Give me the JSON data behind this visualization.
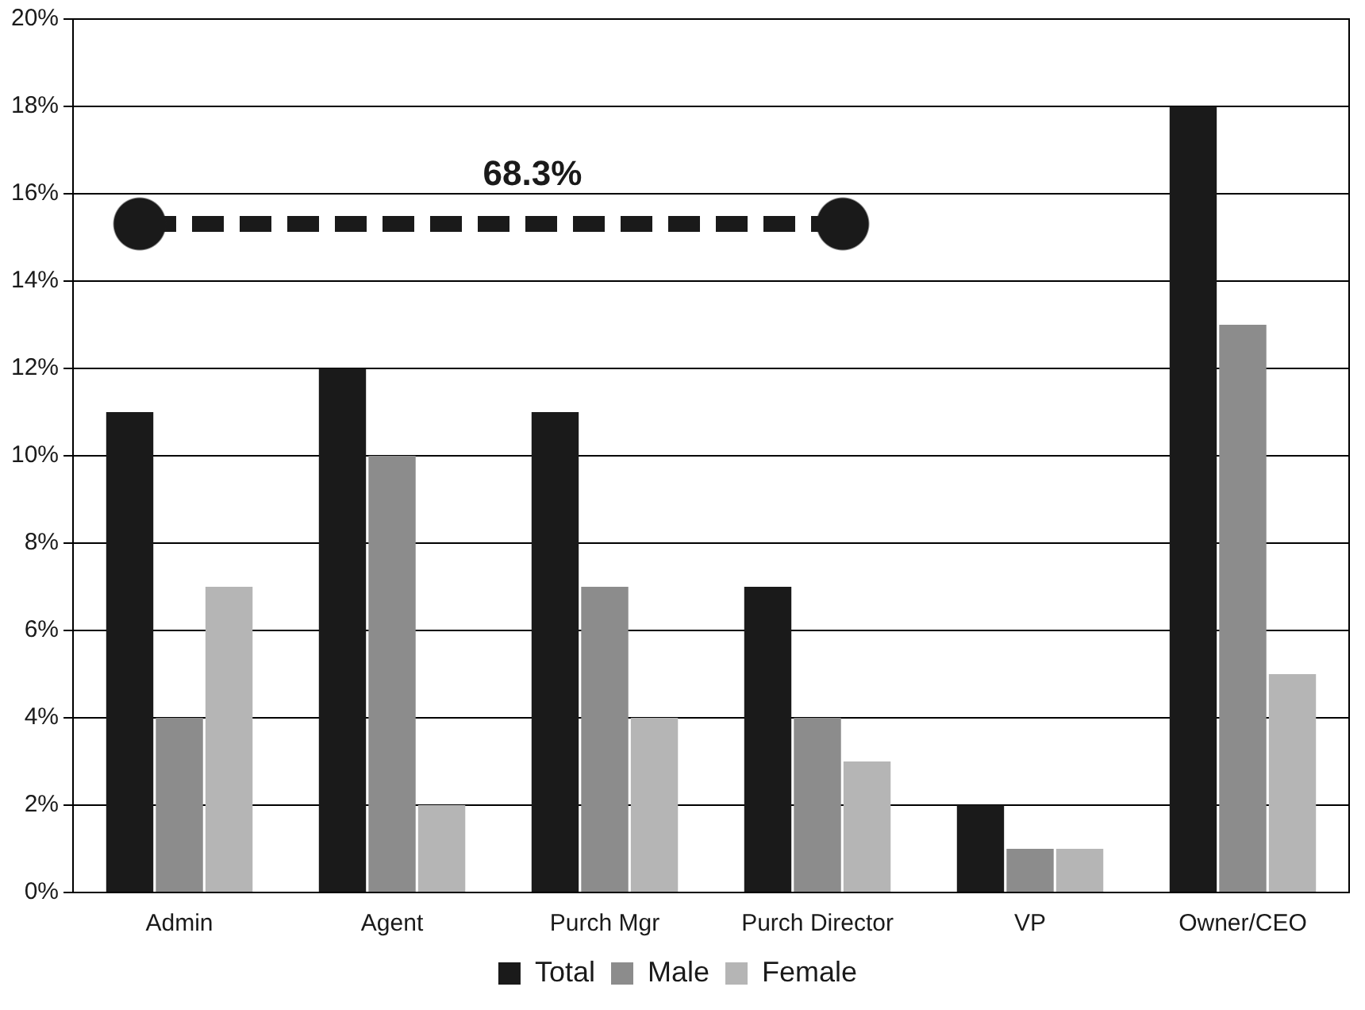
{
  "chart_data": {
    "type": "bar",
    "categories": [
      "Admin",
      "Agent",
      "Purch Mgr",
      "Purch Director",
      "VP",
      "Owner/CEO"
    ],
    "series": [
      {
        "name": "Total",
        "color": "#1a1a1a",
        "values": [
          11,
          12,
          11,
          7,
          2,
          18
        ]
      },
      {
        "name": "Male",
        "color": "#8c8c8c",
        "values": [
          4,
          10,
          7,
          4,
          1,
          13
        ]
      },
      {
        "name": "Female",
        "color": "#b5b5b5",
        "values": [
          7,
          2,
          4,
          3,
          1,
          5
        ]
      }
    ],
    "ylim": [
      0,
      20
    ],
    "yticks": [
      {
        "value": 0,
        "label": "0%"
      },
      {
        "value": 2,
        "label": "2%"
      },
      {
        "value": 4,
        "label": "4%"
      },
      {
        "value": 6,
        "label": "6%"
      },
      {
        "value": 8,
        "label": "8%"
      },
      {
        "value": 10,
        "label": "10%"
      },
      {
        "value": 12,
        "label": "12%"
      },
      {
        "value": 14,
        "label": "14%"
      },
      {
        "value": 16,
        "label": "16%"
      },
      {
        "value": 18,
        "label": "18%"
      },
      {
        "value": 20,
        "label": "20%"
      }
    ],
    "grid": "y",
    "legend": "bottom",
    "annotations": [
      "68.3%"
    ]
  }
}
